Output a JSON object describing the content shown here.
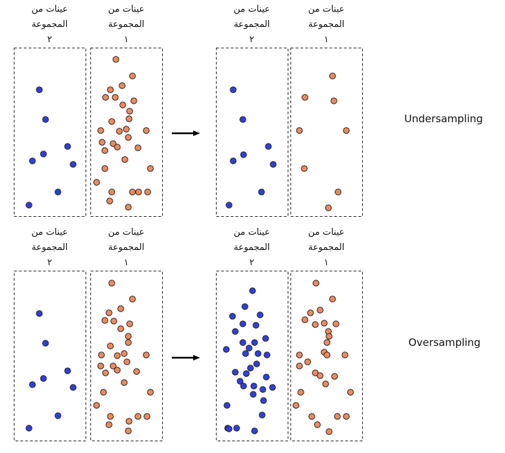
{
  "sample_label_line1": "عينات من",
  "sample_label_line2": "المجموعة",
  "group_1_number": "١",
  "group_2_number": "٢",
  "undersampling_label": "Undersampling",
  "oversampling_label": "Oversampling",
  "colors": {
    "group_1": "#f08a5d",
    "group_2": "#2f3fe0",
    "outline": "#222222"
  },
  "icons": {
    "transform_arrow": "right-arrow-icon"
  }
}
